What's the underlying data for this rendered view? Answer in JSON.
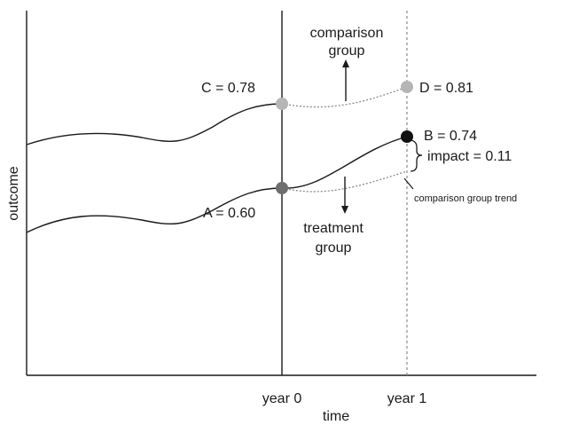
{
  "chart_data": {
    "type": "line",
    "title": "",
    "xlabel": "time",
    "ylabel": "outcome",
    "x_ticks": [
      "year 0",
      "year 1"
    ],
    "series": [
      {
        "name": "comparison group",
        "points": [
          {
            "x": "year 0",
            "y": 0.78,
            "label": "C = 0.78"
          },
          {
            "x": "year 1",
            "y": 0.81,
            "label": "D = 0.81"
          }
        ]
      },
      {
        "name": "treatment group",
        "points": [
          {
            "x": "year 0",
            "y": 0.6,
            "label": "A = 0.60"
          },
          {
            "x": "year 1",
            "y": 0.74,
            "label": "B = 0.74"
          }
        ]
      }
    ],
    "annotations": {
      "impact": "impact = 0.11",
      "trend": "comparison group trend",
      "comparison_label_line1": "comparison",
      "comparison_label_line2": "group",
      "treatment_label_line1": "treatment",
      "treatment_label_line2": "group"
    },
    "colors": {
      "comparison_point": "#b5b5b5",
      "treatment_point_year0": "#6e6e6e",
      "treatment_point_year1": "#111111",
      "lines": "#1a1a1a",
      "dashed": "#8a8a8a"
    }
  }
}
